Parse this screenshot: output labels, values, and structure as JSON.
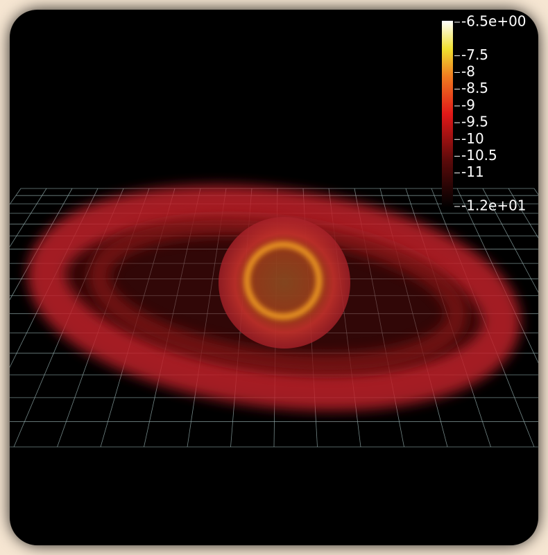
{
  "colorbar": {
    "range": [
      -12,
      -6.5
    ],
    "ticks": [
      {
        "value": -6.5,
        "label": "-6.5e+00"
      },
      -7.5,
      -8,
      -8.5,
      -9,
      -9.5,
      -10,
      -10.5,
      -11,
      {
        "value": -12,
        "label": "-1.2e+01"
      }
    ]
  }
}
